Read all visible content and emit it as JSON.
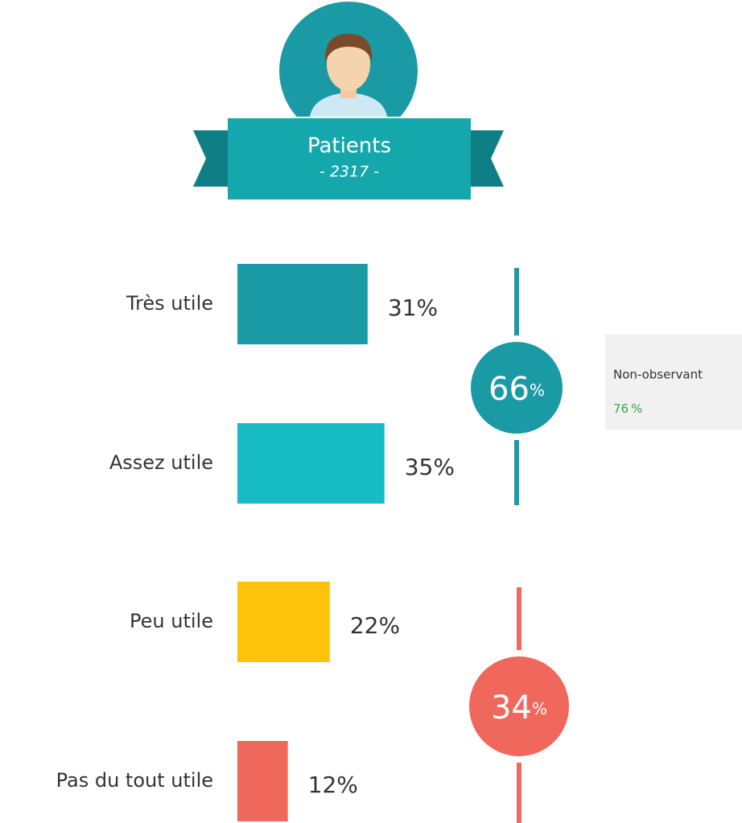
{
  "chart_data": {
    "type": "bar",
    "title": "Patients",
    "subtitle": "- 2317 -",
    "categories": [
      "Très utile",
      "Assez utile",
      "Peu utile",
      "Pas du tout utile"
    ],
    "values": [
      31,
      35,
      22,
      12
    ],
    "value_labels": [
      "31%",
      "35%",
      "22%",
      "12%"
    ],
    "colors": [
      "#1a9aa5",
      "#17bcc4",
      "#fdc30a",
      "#f0675c"
    ],
    "groups": [
      {
        "value": 66,
        "unit": "%",
        "color": "#1a9aa5"
      },
      {
        "value": 34,
        "unit": "%",
        "color": "#f0675c"
      }
    ],
    "note": {
      "label": "Non-observant",
      "value": 76,
      "unit": "%"
    }
  }
}
